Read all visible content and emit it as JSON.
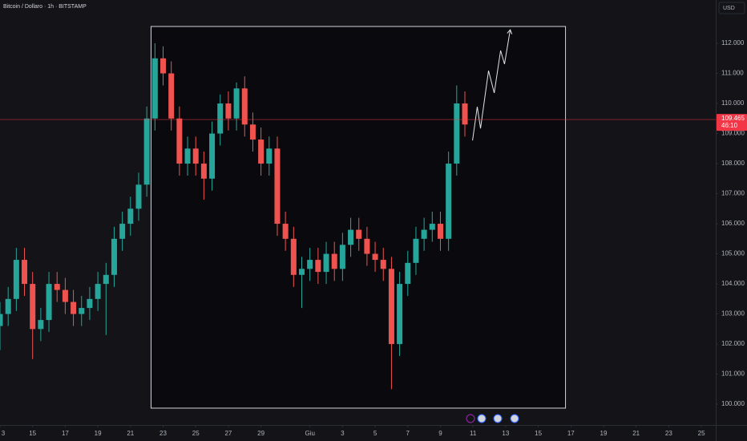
{
  "chart_data": {
    "type": "candlestick",
    "title": "Bitcoin / Dollaro · 1h · BITSTAMP",
    "currency": "USD",
    "x": [
      0,
      0.5,
      1,
      1.5,
      2,
      2.5,
      3,
      3.5,
      4,
      4.5,
      5,
      5.5,
      6,
      6.5,
      7,
      7.5,
      8,
      8.5,
      9,
      9.5,
      10,
      10.5,
      11,
      11.5,
      12,
      12.5,
      13,
      13.5,
      14,
      14.5,
      15,
      15.5,
      16,
      16.5,
      17,
      17.5,
      18,
      18.5,
      19,
      19.5,
      20,
      20.5,
      21,
      21.5,
      22,
      22.5,
      23,
      23.5,
      24,
      24.5,
      25,
      25.5,
      26,
      26.5,
      27,
      27.5,
      28,
      28.5
    ],
    "open": [
      102.6,
      103,
      103.5,
      104.8,
      104,
      102.5,
      102.8,
      104,
      103.8,
      103.4,
      103,
      103.2,
      103.5,
      104,
      104.3,
      105.5,
      106,
      106.5,
      107.3,
      109.5,
      111.5,
      111,
      109.5,
      108,
      108.5,
      108,
      107.5,
      109,
      110,
      109.5,
      110.5,
      109.3,
      108.8,
      108,
      108.5,
      106,
      105.5,
      104.3,
      104.5,
      104.8,
      104.4,
      105,
      104.5,
      105.3,
      105.8,
      105.5,
      105,
      104.8,
      104.5,
      102,
      104,
      104.7,
      105.5,
      105.8,
      106,
      105.5,
      108,
      110
    ],
    "high": [
      103.4,
      103.9,
      105.2,
      105.2,
      104.4,
      103.2,
      104.4,
      104.4,
      104.2,
      103.8,
      103.6,
      103.9,
      104.4,
      104.7,
      105.9,
      106.4,
      106.9,
      107.7,
      109.9,
      112,
      111.9,
      111.4,
      109.9,
      108.9,
      108.9,
      108.4,
      109.4,
      110.3,
      110.4,
      110.7,
      110.9,
      109.7,
      109.2,
      108.9,
      108.9,
      106.4,
      105.9,
      104.9,
      105.2,
      105.2,
      105.4,
      105.4,
      105.7,
      106.2,
      106.2,
      105.9,
      105.4,
      105.2,
      104.9,
      104.4,
      105.1,
      105.9,
      106.2,
      106.4,
      106.4,
      108.4,
      110.6,
      110.4
    ],
    "low": [
      101.8,
      102.6,
      103.1,
      103.6,
      101.5,
      102.1,
      102.4,
      103.4,
      103,
      102.6,
      102.6,
      102.8,
      103.1,
      102.3,
      103.9,
      105.1,
      105.6,
      106.1,
      106.9,
      109.1,
      110.6,
      109.1,
      107.6,
      107.6,
      107.6,
      106.8,
      107.1,
      108.6,
      109.1,
      109.1,
      108.9,
      108.4,
      107.6,
      107.6,
      105.6,
      105.1,
      103.9,
      103.2,
      104.1,
      104,
      104,
      104.1,
      104.1,
      104.9,
      105.1,
      104.6,
      104.4,
      104.1,
      100.5,
      101.6,
      103.6,
      104.3,
      105.1,
      105.4,
      105.1,
      105.1,
      107.6,
      108.9
    ],
    "close": [
      103,
      103.5,
      104.8,
      104,
      102.5,
      102.8,
      104,
      103.8,
      103.4,
      103,
      103.2,
      103.5,
      104,
      104.3,
      105.5,
      106,
      106.5,
      107.3,
      109.5,
      111.5,
      111,
      109.5,
      108,
      108.5,
      108,
      107.5,
      109,
      110,
      109.5,
      110.5,
      109.3,
      108.8,
      108,
      108.5,
      106,
      105.5,
      104.3,
      104.5,
      104.8,
      104.4,
      105,
      104.5,
      105.3,
      105.8,
      105.5,
      105,
      104.8,
      104.5,
      102,
      104,
      104.7,
      105.5,
      105.8,
      106,
      105.5,
      108,
      110,
      109.3
    ],
    "up_color": "#26a69a",
    "down_color": "#ef5350",
    "xlim": [
      0,
      43.88
    ],
    "ylim": [
      99.31,
      113.44
    ],
    "xticks": [
      {
        "value": 0,
        "label": "3"
      },
      {
        "value": 2,
        "label": "15"
      },
      {
        "value": 4,
        "label": "17"
      },
      {
        "value": 6,
        "label": "19"
      },
      {
        "value": 8,
        "label": "21"
      },
      {
        "value": 10,
        "label": "23"
      },
      {
        "value": 12,
        "label": "25"
      },
      {
        "value": 14,
        "label": "27"
      },
      {
        "value": 16,
        "label": "29"
      },
      {
        "value": 19,
        "label": "Giu"
      },
      {
        "value": 21,
        "label": "3"
      },
      {
        "value": 23,
        "label": "5"
      },
      {
        "value": 25,
        "label": "7"
      },
      {
        "value": 27,
        "label": "9"
      },
      {
        "value": 29,
        "label": "11"
      },
      {
        "value": 31,
        "label": "13"
      },
      {
        "value": 33,
        "label": "15"
      },
      {
        "value": 35,
        "label": "17"
      },
      {
        "value": 37,
        "label": "19"
      },
      {
        "value": 39,
        "label": "21"
      },
      {
        "value": 41,
        "label": "23"
      },
      {
        "value": 43,
        "label": "25"
      }
    ],
    "yticks": [
      {
        "value": 100,
        "label": "100.000"
      },
      {
        "value": 101,
        "label": "101.000"
      },
      {
        "value": 102,
        "label": "102.000"
      },
      {
        "value": 103,
        "label": "103.000"
      },
      {
        "value": 104,
        "label": "104.000"
      },
      {
        "value": 105,
        "label": "105.000"
      },
      {
        "value": 106,
        "label": "106.000"
      },
      {
        "value": 107,
        "label": "107.000"
      },
      {
        "value": 108,
        "label": "108.000"
      },
      {
        "value": 109,
        "label": "109.000"
      },
      {
        "value": 110,
        "label": "110.000"
      },
      {
        "value": 111,
        "label": "111.000"
      },
      {
        "value": 112,
        "label": "112.000"
      }
    ],
    "last_price": {
      "value": 109.465,
      "label": "109.465",
      "countdown": "46:10",
      "color": "#f23645"
    },
    "box": {
      "x": [
        9.26,
        34.67
      ],
      "y": [
        99.87,
        112.56
      ]
    },
    "projection": {
      "x": [
        28.97,
        29.26,
        29.46,
        29.95,
        30.3,
        30.69,
        30.93,
        31.28
      ],
      "y": [
        108.77,
        109.89,
        109.17,
        111.09,
        110.35,
        111.76,
        111.31,
        112.45
      ]
    }
  }
}
